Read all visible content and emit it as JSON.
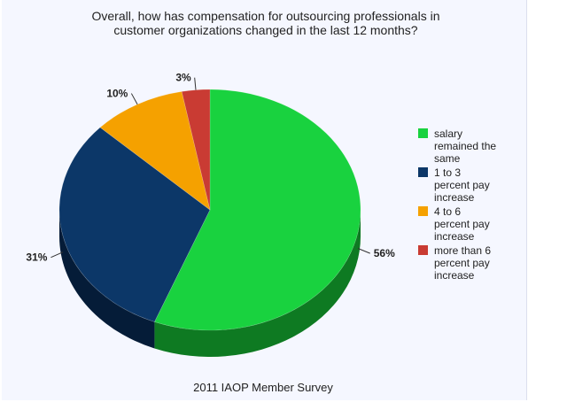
{
  "chart_data": {
    "type": "pie",
    "title": "Overall, how has compensation for outsourcing professionals in\ncustomer organizations changed in the last 12 months?",
    "subtitle": "2011 IAOP Member Survey",
    "legend_position": "right",
    "slices": [
      {
        "label": "salary remained the same",
        "label_lines": [
          "salary",
          "remained the",
          "same"
        ],
        "value": 56,
        "value_label": "56%",
        "color": "#19d23f",
        "side_color": "#0e7a22"
      },
      {
        "label": "1 to 3 percent pay increase",
        "label_lines": [
          "1 to 3",
          "percent pay",
          "increase"
        ],
        "value": 31,
        "value_label": "31%",
        "color": "#0c3768",
        "side_color": "#051c38"
      },
      {
        "label": "4 to 6 percent pay increase",
        "label_lines": [
          "4 to 6",
          "percent pay",
          "increase"
        ],
        "value": 10,
        "value_label": "10%",
        "color": "#f5a100",
        "side_color": "#9c6500"
      },
      {
        "label": "more than 6 percent pay increase",
        "label_lines": [
          "more than 6",
          "percent pay",
          "increase"
        ],
        "value": 3,
        "value_label": "3%",
        "color": "#c93b33",
        "side_color": "#7c1f1a"
      }
    ]
  }
}
